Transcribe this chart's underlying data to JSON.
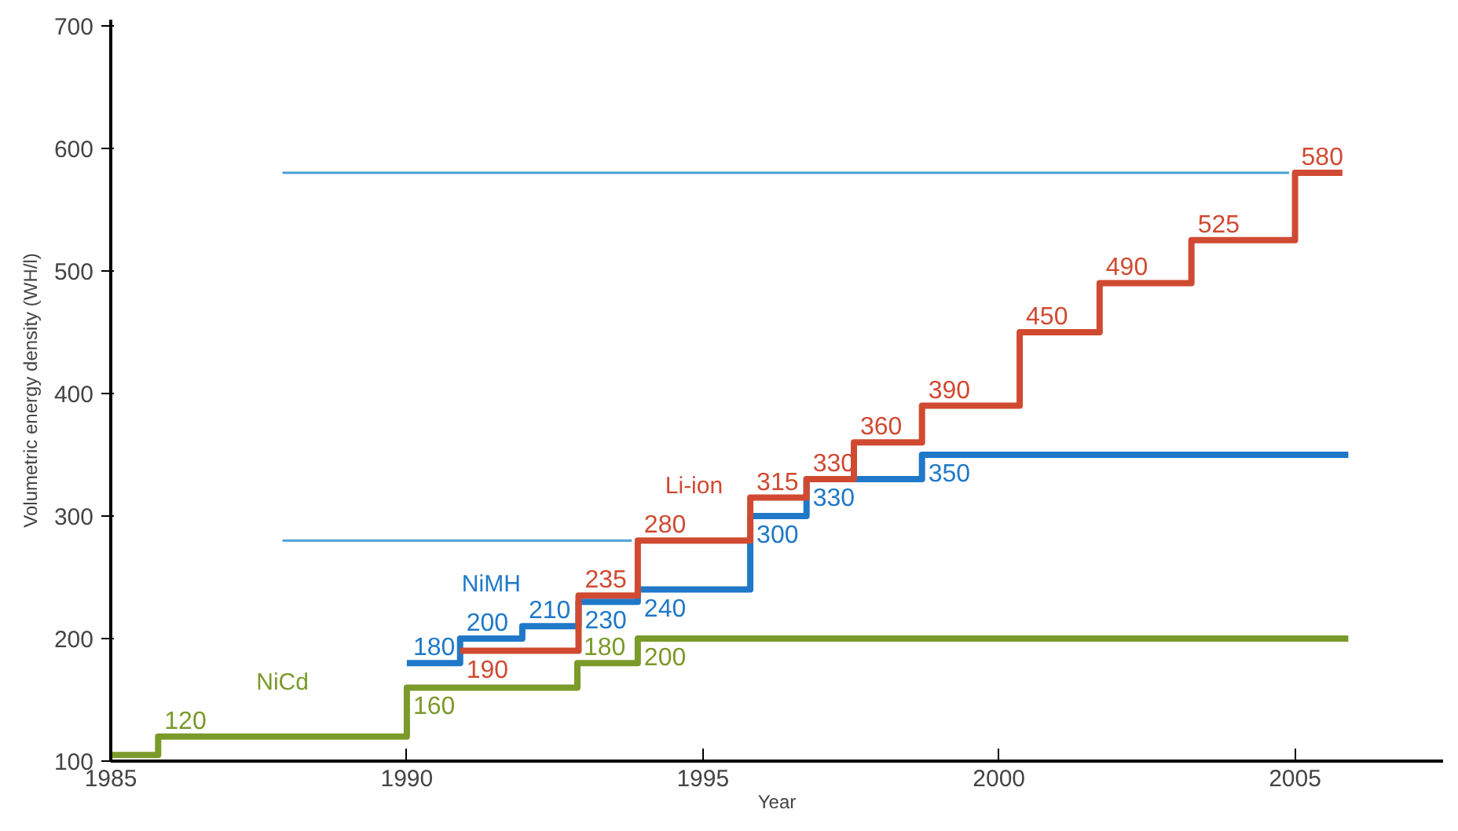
{
  "chart_data": {
    "type": "step",
    "xlabel": "Year",
    "ylabel": "Volumetric energy density (WH/l)",
    "xlim": [
      1985,
      2007.5
    ],
    "ylim": [
      100,
      705
    ],
    "xticks": [
      1985,
      1990,
      1995,
      2000,
      2005
    ],
    "yticks": [
      100,
      200,
      300,
      400,
      500,
      600,
      700
    ],
    "grid": false,
    "line_style": "solid",
    "marker": "none",
    "series": [
      {
        "name": "NiCd",
        "color": "#7a9a2a",
        "x": [
          1985,
          1985.8,
          1990,
          1992.88,
          1993.9,
          2005.9
        ],
        "values": [
          105,
          120,
          160,
          180,
          200,
          200
        ],
        "value_labels": [
          null,
          "120",
          "160",
          "180",
          "200",
          null
        ]
      },
      {
        "name": "NiMH",
        "color": "#1f78c8",
        "x": [
          1990,
          1990.9,
          1991.95,
          1992.9,
          1993.9,
          1995.8,
          1996.75,
          1998.7,
          2005.9
        ],
        "values": [
          180,
          200,
          210,
          230,
          240,
          300,
          330,
          350,
          350
        ],
        "value_labels": [
          "180",
          "200",
          "210",
          "230",
          "240",
          "300",
          "330",
          "350",
          null
        ]
      },
      {
        "name": "Li-ion",
        "color": "#d04a32",
        "x": [
          1990.9,
          1992.9,
          1993.9,
          1995.8,
          1996.75,
          1997.55,
          1998.7,
          2000.35,
          2001.7,
          2003.25,
          2005.0,
          2005.8
        ],
        "values": [
          190,
          235,
          280,
          315,
          330,
          360,
          390,
          450,
          490,
          525,
          580,
          580
        ],
        "value_labels": [
          "190",
          "235",
          "280",
          "315",
          "330",
          "360",
          "390",
          "450",
          "490",
          "525",
          "580",
          null
        ]
      },
      {
        "type": "line",
        "color": "#4aa0d8",
        "x": [
          1987.9,
          1993.8
        ],
        "values": [
          280,
          280
        ]
      },
      {
        "type": "line",
        "color": "#4aa0d8",
        "x": [
          1987.9,
          2004.9
        ],
        "values": [
          580,
          580
        ]
      }
    ]
  }
}
